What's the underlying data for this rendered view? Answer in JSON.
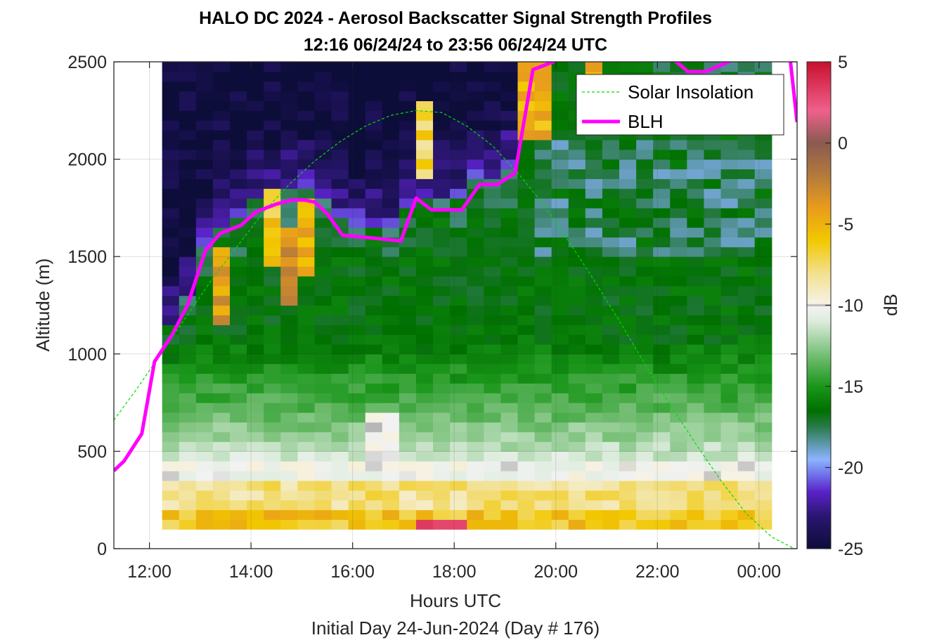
{
  "chart_data": {
    "type": "heatmap",
    "title": "HALO DC 2024 - Aerosol Backscatter Signal Strength Profiles",
    "subtitle": "12:16 06/24/24 to 23:56 06/24/24  UTC",
    "xlabel": "Hours UTC",
    "xlabel2": "Initial Day 24-Jun-2024 (Day # 176)",
    "ylabel": "Altitude (m)",
    "colorbar_label": "dB",
    "xlim": [
      11.3,
      24.75
    ],
    "ylim": [
      0,
      2500
    ],
    "grid": true,
    "legend_placement": "top-right",
    "x_ticks": [
      {
        "value": 12,
        "label": "12:00"
      },
      {
        "value": 14,
        "label": "14:00"
      },
      {
        "value": 16,
        "label": "16:00"
      },
      {
        "value": 18,
        "label": "18:00"
      },
      {
        "value": 20,
        "label": "20:00"
      },
      {
        "value": 22,
        "label": "22:00"
      },
      {
        "value": 24,
        "label": "00:00"
      }
    ],
    "y_ticks": [
      {
        "value": 0,
        "label": "0"
      },
      {
        "value": 500,
        "label": "500"
      },
      {
        "value": 1000,
        "label": "1000"
      },
      {
        "value": 1500,
        "label": "1500"
      },
      {
        "value": 2000,
        "label": "2000"
      },
      {
        "value": 2500,
        "label": "2500"
      }
    ],
    "colorbar": {
      "range": [
        -25,
        5
      ],
      "ticks": [
        {
          "value": 5,
          "label": "5"
        },
        {
          "value": 0,
          "label": "0"
        },
        {
          "value": -5,
          "label": "-5"
        },
        {
          "value": -10,
          "label": "-10"
        },
        {
          "value": -15,
          "label": "-15"
        },
        {
          "value": -20,
          "label": "-20"
        },
        {
          "value": -25,
          "label": "-25"
        }
      ],
      "stops": [
        {
          "value": -25,
          "color": "#0d0d3a"
        },
        {
          "value": -23,
          "color": "#2a1670"
        },
        {
          "value": -21.5,
          "color": "#5a22c8"
        },
        {
          "value": -20.5,
          "color": "#6e6ee8"
        },
        {
          "value": -19.5,
          "color": "#8cb4ff"
        },
        {
          "value": -18.5,
          "color": "#5a96a6"
        },
        {
          "value": -17.5,
          "color": "#2a7a4a"
        },
        {
          "value": -16.5,
          "color": "#007000"
        },
        {
          "value": -15,
          "color": "#1a961a"
        },
        {
          "value": -13,
          "color": "#78c078"
        },
        {
          "value": -11,
          "color": "#dcecdc"
        },
        {
          "value": -10.1,
          "color": "#f2f2f2"
        },
        {
          "value": -10,
          "color": "#a8a8a8"
        },
        {
          "value": -9.9,
          "color": "#f6f2e6"
        },
        {
          "value": -8,
          "color": "#f2e08c"
        },
        {
          "value": -6,
          "color": "#f2c800"
        },
        {
          "value": -4,
          "color": "#e89c1c"
        },
        {
          "value": -2,
          "color": "#b47a3c"
        },
        {
          "value": 0,
          "color": "#8a5a50"
        },
        {
          "value": 2,
          "color": "#f0608c"
        },
        {
          "value": 5,
          "color": "#c8102e"
        }
      ]
    },
    "heatmap": {
      "time_start": 12.25,
      "time_step": 0.3333,
      "n_columns": 36,
      "altitude_start": 100,
      "altitude_step": 50,
      "n_rows": 48,
      "value_units": "dB",
      "note_values": "cells are estimated from the colour pattern"
    },
    "series": [
      {
        "name": "Solar Insolation",
        "color": "#00dd00",
        "style": "dashed",
        "x": [
          11.3,
          11.75,
          12.25,
          12.75,
          13.25,
          13.75,
          14.25,
          14.75,
          15.25,
          15.75,
          16.25,
          16.75,
          17.25,
          17.75,
          18.25,
          18.75,
          19.25,
          19.75,
          20.25,
          20.75,
          21.25,
          21.75,
          22.25,
          22.75,
          23.25,
          23.75,
          24.25,
          24.7
        ],
        "y": [
          660,
          820,
          1010,
          1200,
          1390,
          1560,
          1730,
          1870,
          1990,
          2090,
          2170,
          2225,
          2250,
          2240,
          2170,
          2070,
          1930,
          1770,
          1580,
          1380,
          1170,
          950,
          740,
          540,
          350,
          180,
          60,
          0
        ]
      },
      {
        "name": "BLH",
        "color": "#ff00ff",
        "style": "solid",
        "x": [
          11.3,
          11.5,
          11.85,
          12.1,
          12.45,
          12.75,
          13.1,
          13.4,
          13.8,
          14.1,
          14.5,
          14.8,
          15.05,
          15.25,
          15.5,
          15.8,
          16.2,
          16.6,
          16.95,
          17.25,
          17.55,
          17.8,
          18.15,
          18.5,
          18.85,
          19.2,
          19.55,
          19.95,
          20.3,
          20.7,
          21.05,
          21.5,
          22.1,
          22.6,
          22.95,
          23.4,
          23.75,
          24.1,
          24.45,
          24.62,
          24.75
        ],
        "y": [
          400,
          450,
          590,
          960,
          1100,
          1250,
          1530,
          1620,
          1660,
          1730,
          1770,
          1790,
          1790,
          1780,
          1720,
          1610,
          1600,
          1590,
          1580,
          1800,
          1740,
          1740,
          1740,
          1870,
          1870,
          1930,
          2460,
          2500,
          2570,
          2620,
          2640,
          2620,
          2560,
          2450,
          2450,
          2500,
          2560,
          2580,
          2570,
          2500,
          2190
        ]
      }
    ]
  }
}
